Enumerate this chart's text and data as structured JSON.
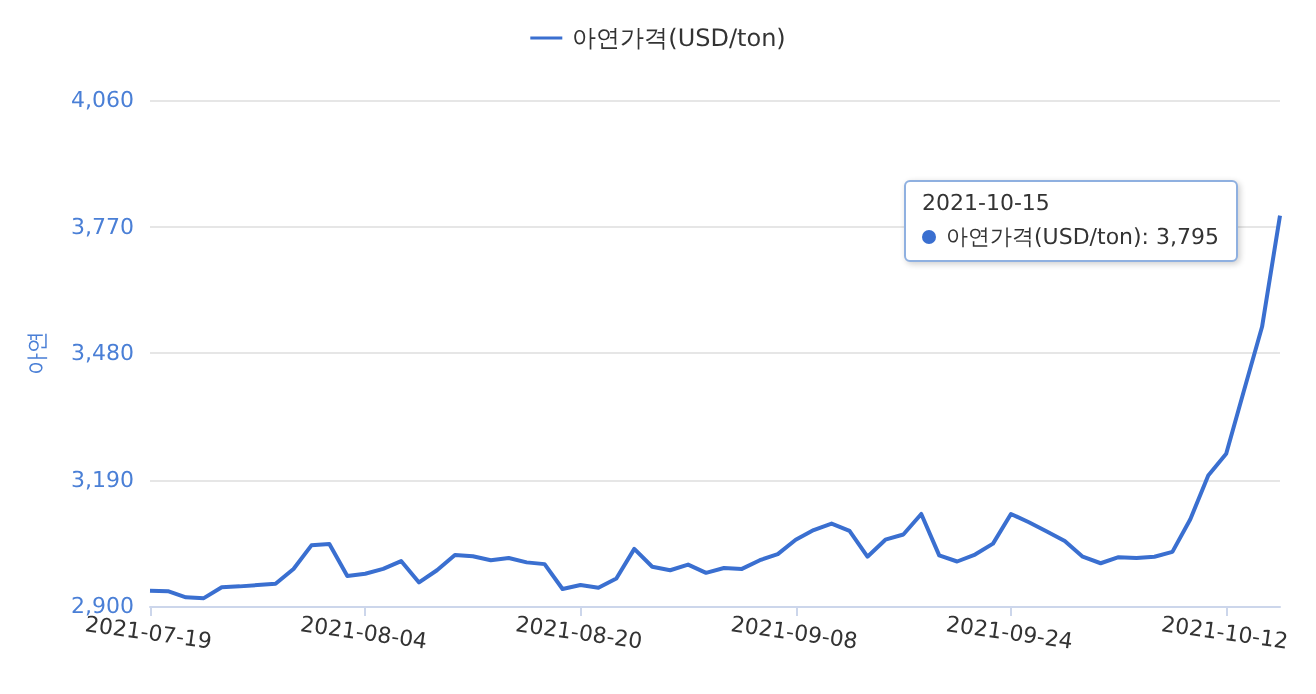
{
  "chart_data": {
    "type": "line",
    "ylabel": "아연",
    "legend": "top",
    "categories": [
      "2021-07-19",
      null,
      null,
      null,
      null,
      null,
      null,
      null,
      null,
      null,
      null,
      null,
      "2021-08-04",
      null,
      null,
      null,
      null,
      null,
      null,
      null,
      null,
      null,
      null,
      null,
      "2021-08-20",
      null,
      null,
      null,
      null,
      null,
      null,
      null,
      null,
      null,
      null,
      null,
      "2021-09-08",
      null,
      null,
      null,
      null,
      null,
      null,
      null,
      null,
      null,
      null,
      null,
      "2021-09-24",
      null,
      null,
      null,
      null,
      null,
      null,
      null,
      null,
      null,
      null,
      null,
      "2021-10-12",
      null,
      null,
      null
    ],
    "series": [
      {
        "name": "아연가격(USD/ton)",
        "color": "#3a6fd0",
        "values": [
          2935,
          2934,
          2920,
          2918,
          2943,
          2945,
          2948,
          2951,
          2985,
          3039,
          3042,
          2969,
          2974,
          2985,
          3003,
          2954,
          2982,
          3017,
          3014,
          3005,
          3010,
          3000,
          2996,
          2939,
          2948,
          2942,
          2963,
          3031,
          2990,
          2982,
          2995,
          2976,
          2987,
          2985,
          3005,
          3019,
          3052,
          3074,
          3089,
          3072,
          3013,
          3052,
          3064,
          3111,
          3016,
          3002,
          3018,
          3043,
          3111,
          3092,
          3071,
          3049,
          3013,
          2998,
          3012,
          3010,
          3013,
          3024,
          3099,
          3199,
          3249,
          3395,
          3540,
          3795
        ]
      }
    ],
    "ylim": [
      2900,
      4060
    ],
    "yticks": [
      {
        "value": 2900,
        "label": "2,900"
      },
      {
        "value": 3190,
        "label": "3,190"
      },
      {
        "value": 3480,
        "label": "3,480"
      },
      {
        "value": 3770,
        "label": "3,770"
      },
      {
        "value": 4060,
        "label": "4,060"
      }
    ],
    "grid": "y",
    "marker": "none",
    "line_style": "solid",
    "annotations": [
      "2021-10-15",
      "아연가격(USD/ton): 3,795"
    ]
  }
}
